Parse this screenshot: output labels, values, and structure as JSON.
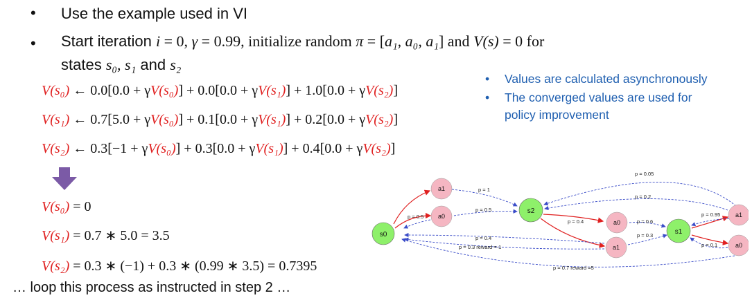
{
  "bullets": {
    "b1": "Use the example used in VI",
    "b2_prefix": "Start iteration ",
    "b2_i": "i",
    "b2_eq0": " = 0, ",
    "b2_gamma": "γ",
    "b2_eq1": " = 0.99, initialize random ",
    "b2_pi": "π",
    "b2_eq2": " = [",
    "b2_list": "a₁, a₀, a₁",
    "b2_eq3": "] and ",
    "b2_V": "V(s)",
    "b2_eq4": " = 0 for",
    "b3_prefix": "states ",
    "b3_s0": "s₀",
    "b3_sep": ", ",
    "b3_s1": "s₁",
    "b3_and": " and ",
    "b3_s2": "s₂"
  },
  "equations": {
    "e1_lhs": "V(s₀)",
    "e1_rhs": " ← 0.0[0.0 + γ",
    "e1_v0": "V(s₀)",
    "e1_mid1": "] + 0.0[0.0 + γ",
    "e1_v1": "V(s₁)",
    "e1_mid2": "] + 1.0[0.0 + γ",
    "e1_v2": "V(s₂)",
    "e1_end": "]",
    "e2_lhs": "V(s₁)",
    "e2_rhs": " ← 0.7[5.0 + γ",
    "e2_v0": "V(s₀)",
    "e2_mid1": "] + 0.1[0.0 + γ",
    "e2_v1": "V(s₁)",
    "e2_mid2": "] + 0.2[0.0 + γ",
    "e2_v2": "V(s₂)",
    "e2_end": "]",
    "e3_lhs": "V(s₂)",
    "e3_rhs": " ← 0.3[−1 + γ",
    "e3_v0": "V(s₀)",
    "e3_mid1": "] + 0.3[0.0 + γ",
    "e3_v1": "V(s₁)",
    "e3_mid2": "] + 0.4[0.0 + γ",
    "e3_v2": "V(s₂)",
    "e3_end": "]"
  },
  "results": {
    "r1_lhs": "V(s₀)",
    "r1_rhs": " = 0",
    "r2_lhs": "V(s₁)",
    "r2_rhs": " = 0.7 ∗ 5.0 = 3.5",
    "r3_lhs": "V(s₂)",
    "r3_rhs": " = 0.3 ∗ (−1) + 0.3 ∗ (0.99 ∗ 3.5) = 0.7395"
  },
  "notes": [
    "Values are calculated asynchronously",
    "The converged values are used for",
    "policy improvement"
  ],
  "footer": "… loop this process as instructed in step 2 …",
  "graph": {
    "nodes": {
      "s0": "s0",
      "s1": "s1",
      "s2": "s2",
      "a1_top": "a1",
      "a0_left": "a0",
      "a0_mid": "a0",
      "a1_mid": "a1",
      "a1_right": "a1",
      "a0_right": "a0"
    },
    "labels": {
      "p1": "p = 1",
      "p05_a": "p = 0.5",
      "p05_b": "p = 0.5",
      "p04_a": "p = 0.4",
      "p04_b": "p = 0.4",
      "p03_rm1": "p = 0.3  reward =-1",
      "p06": "p = 0.6",
      "p03": "p = 0.3",
      "p005": "p = 0.05",
      "p02": "p = 0.2",
      "p095": "p = 0.95",
      "p01": "p = 0.1",
      "p07_r5": "p = 0.7  reward =5"
    },
    "colors": {
      "state_fill": "#8ef06a",
      "action_fill": "#f5b6c2",
      "red_edge": "#e02020",
      "blue_edge": "#3a4cc8"
    }
  },
  "colors": {
    "red_text": "#e02020",
    "blue_text": "#1f5fb0",
    "arrow_purple": "#7b5aa6"
  }
}
